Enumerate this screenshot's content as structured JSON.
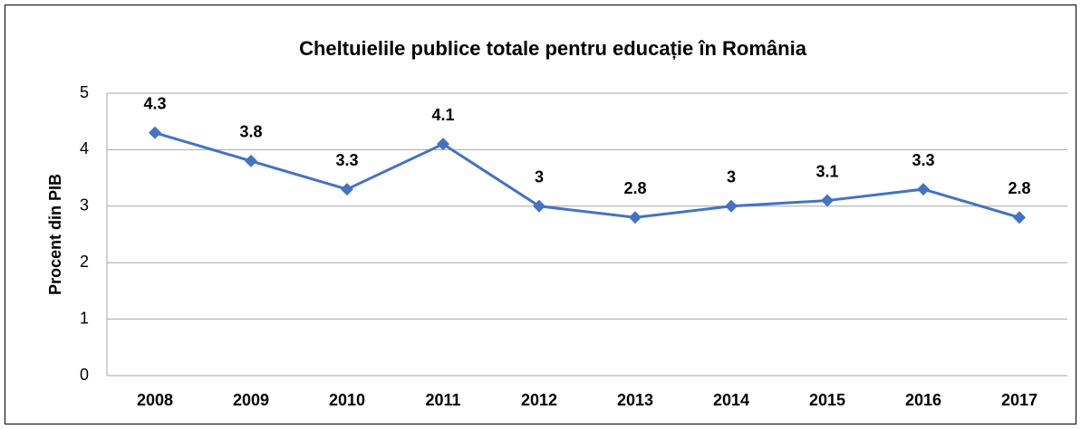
{
  "chart_data": {
    "type": "line",
    "title": "Cheltuielile publice totale pentru educație în România",
    "y_label": "Procent din PIB",
    "categories": [
      "2008",
      "2009",
      "2010",
      "2011",
      "2012",
      "2013",
      "2014",
      "2015",
      "2016",
      "2017"
    ],
    "series": [
      {
        "name": "Procent din PIB",
        "color": "#4472c4",
        "values": [
          4.3,
          3.8,
          3.3,
          4.1,
          3,
          2.8,
          3,
          3.1,
          3.3,
          2.8
        ]
      }
    ],
    "ylim": [
      0,
      5
    ],
    "yticks": [
      0,
      1,
      2,
      3,
      4,
      5
    ],
    "grid": true
  }
}
